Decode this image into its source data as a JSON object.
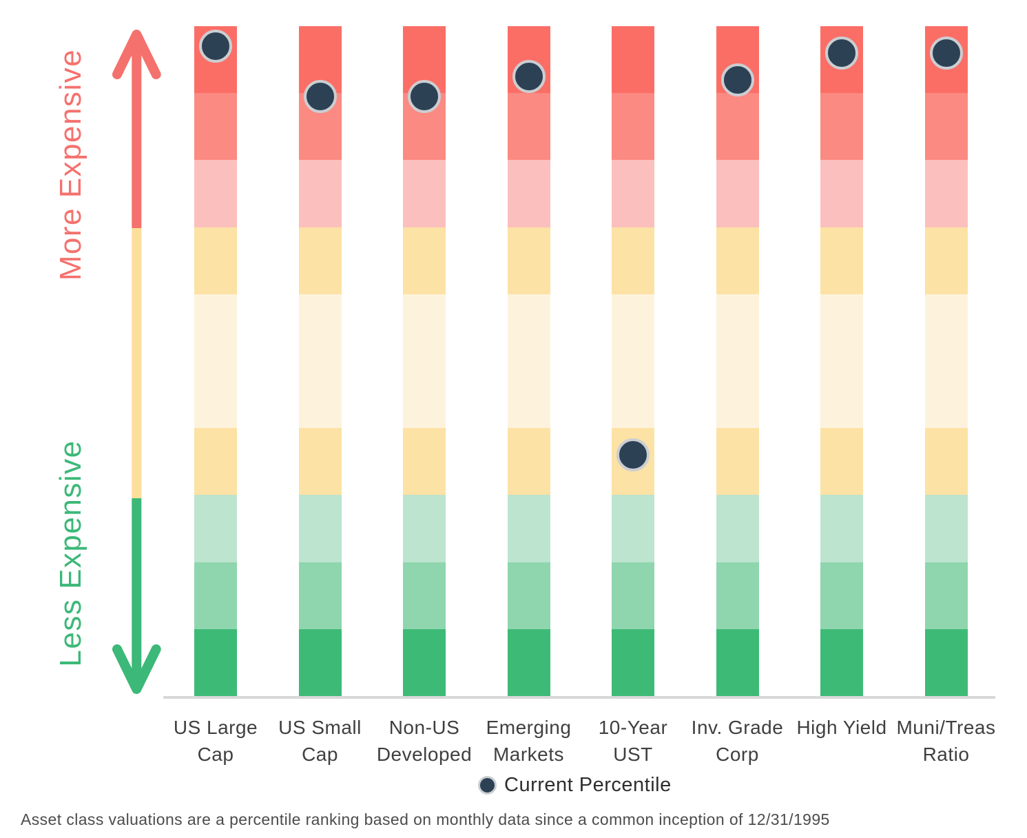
{
  "chart_data": {
    "type": "bar",
    "subtype": "percentile-decile-bands",
    "title": "",
    "ylabel_top": "More Expensive",
    "ylabel_bottom": "Less Expensive",
    "ylim": [
      0,
      100
    ],
    "legend_label": "Current Percentile",
    "footnote": "Asset class valuations are a percentile ranking based on monthly data since a common inception of 12/31/1995",
    "categories": [
      "US Large Cap",
      "US Small Cap",
      "Non-US Developed",
      "Emerging Markets",
      "10-Year UST",
      "Inv. Grade Corp",
      "High Yield",
      "Muni/Treas Ratio"
    ],
    "series": [
      {
        "name": "Current Percentile",
        "values": [
          97,
          89.5,
          89.5,
          92.5,
          36,
          92,
          96,
          96
        ]
      }
    ],
    "columns": [
      {
        "key": "us-large-cap",
        "label_lines": [
          "US Large",
          "Cap"
        ],
        "percentile": 97
      },
      {
        "key": "us-small-cap",
        "label_lines": [
          "US Small",
          "Cap"
        ],
        "percentile": 89.5
      },
      {
        "key": "non-us-developed",
        "label_lines": [
          "Non-US",
          "Developed"
        ],
        "percentile": 89.5
      },
      {
        "key": "emerging-markets",
        "label_lines": [
          "Emerging",
          "Markets"
        ],
        "percentile": 92.5
      },
      {
        "key": "10-year-ust",
        "label_lines": [
          "10-Year",
          "UST"
        ],
        "percentile": 36
      },
      {
        "key": "inv-grade-corp",
        "label_lines": [
          "Inv. Grade",
          "Corp"
        ],
        "percentile": 92
      },
      {
        "key": "high-yield",
        "label_lines": [
          "High Yield"
        ],
        "percentile": 96
      },
      {
        "key": "muni-treas-ratio",
        "label_lines": [
          "Muni/Treas",
          "Ratio"
        ],
        "percentile": 96
      }
    ],
    "decile_bands_top_to_bottom": [
      {
        "range": "90-100",
        "color": "#fb6e66"
      },
      {
        "range": "80-90",
        "color": "#fb8a82"
      },
      {
        "range": "70-80",
        "color": "#fbc0bd"
      },
      {
        "range": "60-70",
        "color": "#fce2a4"
      },
      {
        "range": "50-60",
        "color": "#fdf3dd"
      },
      {
        "range": "40-50",
        "color": "#fdf3dd"
      },
      {
        "range": "30-40",
        "color": "#fce2a4"
      },
      {
        "range": "20-30",
        "color": "#bce4ce"
      },
      {
        "range": "10-20",
        "color": "#8fd6ae"
      },
      {
        "range": "0-10",
        "color": "#3eba77"
      }
    ],
    "grid": false,
    "legend_position": "bottom-center"
  },
  "colors": {
    "arrow_red": "#f4716d",
    "arrow_yellow": "#fbdf9b",
    "arrow_green": "#3cb878",
    "text_red": "#f4716d",
    "text_green": "#3cb878",
    "dot_navy": "#2c4154",
    "dot_ring": "#cbced2",
    "axis_gray": "#d8d8d8",
    "category_label": "#3f3f3f",
    "legend_text": "#2e2e2e",
    "footnote_text": "#4c4c4c"
  }
}
